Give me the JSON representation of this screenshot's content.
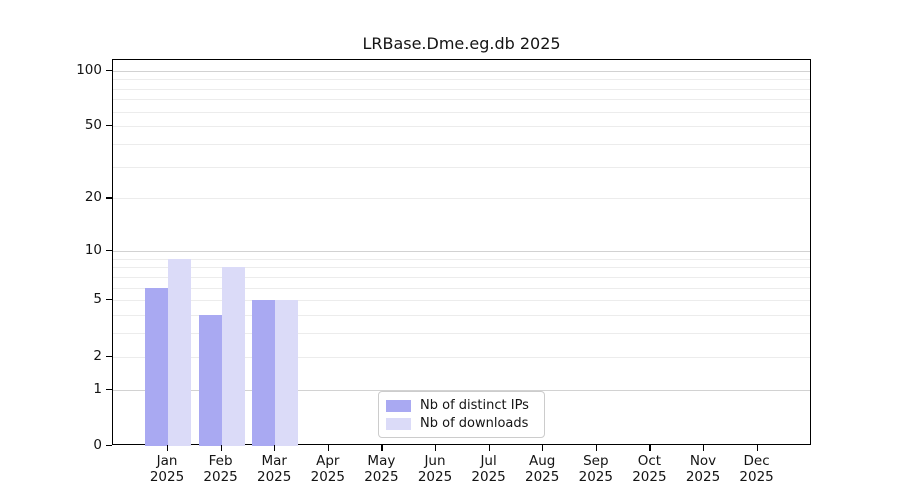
{
  "title": "LRBase.Dme.eg.db 2025",
  "chart_data": {
    "type": "bar",
    "title": "LRBase.Dme.eg.db 2025",
    "scale": "log1p",
    "categories": [
      "Jan",
      "Feb",
      "Mar",
      "Apr",
      "May",
      "Jun",
      "Jul",
      "Aug",
      "Sep",
      "Oct",
      "Nov",
      "Dec"
    ],
    "xtick_year": "2025",
    "series": [
      {
        "name": "Nb of distinct IPs",
        "color": "#a9a9f2",
        "values": [
          6,
          4,
          5,
          0,
          0,
          0,
          0,
          0,
          0,
          0,
          0,
          0
        ]
      },
      {
        "name": "Nb of downloads",
        "color": "#dbdbf8",
        "values": [
          9,
          8,
          5,
          0,
          0,
          0,
          0,
          0,
          0,
          0,
          0,
          0
        ]
      }
    ],
    "yticks": [
      0,
      1,
      2,
      5,
      10,
      20,
      50,
      100
    ],
    "major_gridlines": [
      1,
      10,
      100
    ],
    "minor_gridlines": [
      2,
      3,
      4,
      5,
      6,
      7,
      8,
      9,
      20,
      30,
      40,
      50,
      60,
      70,
      80,
      90
    ],
    "ylim": [
      0,
      114
    ],
    "xlabel": "",
    "ylabel": "",
    "grid": true,
    "legend_position": "bottom-center"
  },
  "colors": {
    "bar_ips": "#a9a9f2",
    "bar_downloads": "#dbdbf8",
    "grid_major": "#d2d2d2",
    "grid_minor": "#ececec",
    "spine": "#000000",
    "legend_border": "#cccccc",
    "text": "#141414"
  }
}
